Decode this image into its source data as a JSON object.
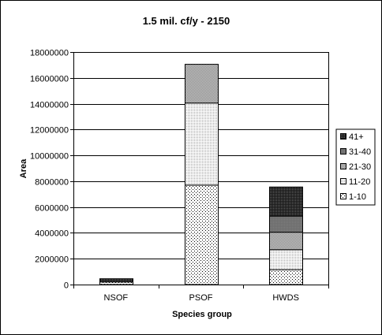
{
  "chart_data": {
    "type": "bar",
    "stacked": true,
    "title": "1.5 mil. cf/y - 2150",
    "xlabel": "Species group",
    "ylabel": "Area",
    "categories": [
      "NSOF",
      "PSOF",
      "HWDS"
    ],
    "ylim": [
      0,
      18000000
    ],
    "yticks": [
      0,
      2000000,
      4000000,
      6000000,
      8000000,
      10000000,
      12000000,
      14000000,
      16000000,
      18000000
    ],
    "ytick_labels": [
      "0",
      "2000000",
      "4000000",
      "6000000",
      "8000000",
      "10000000",
      "12000000",
      "14000000",
      "16000000",
      "18000000"
    ],
    "grid": true,
    "legend_position": "right",
    "series": [
      {
        "name": "1-10",
        "values": [
          200000,
          7700000,
          1150000
        ],
        "pattern": "dots-sparse"
      },
      {
        "name": "11-20",
        "values": [
          0,
          6350000,
          1550000
        ],
        "pattern": "dots-dense"
      },
      {
        "name": "21-30",
        "values": [
          0,
          3000000,
          1350000
        ],
        "pattern": "checker"
      },
      {
        "name": "31-40",
        "values": [
          0,
          0,
          1250000
        ],
        "pattern": "dark-gray"
      },
      {
        "name": "41+",
        "values": [
          250000,
          0,
          2250000
        ],
        "pattern": "dark-checker"
      }
    ]
  }
}
